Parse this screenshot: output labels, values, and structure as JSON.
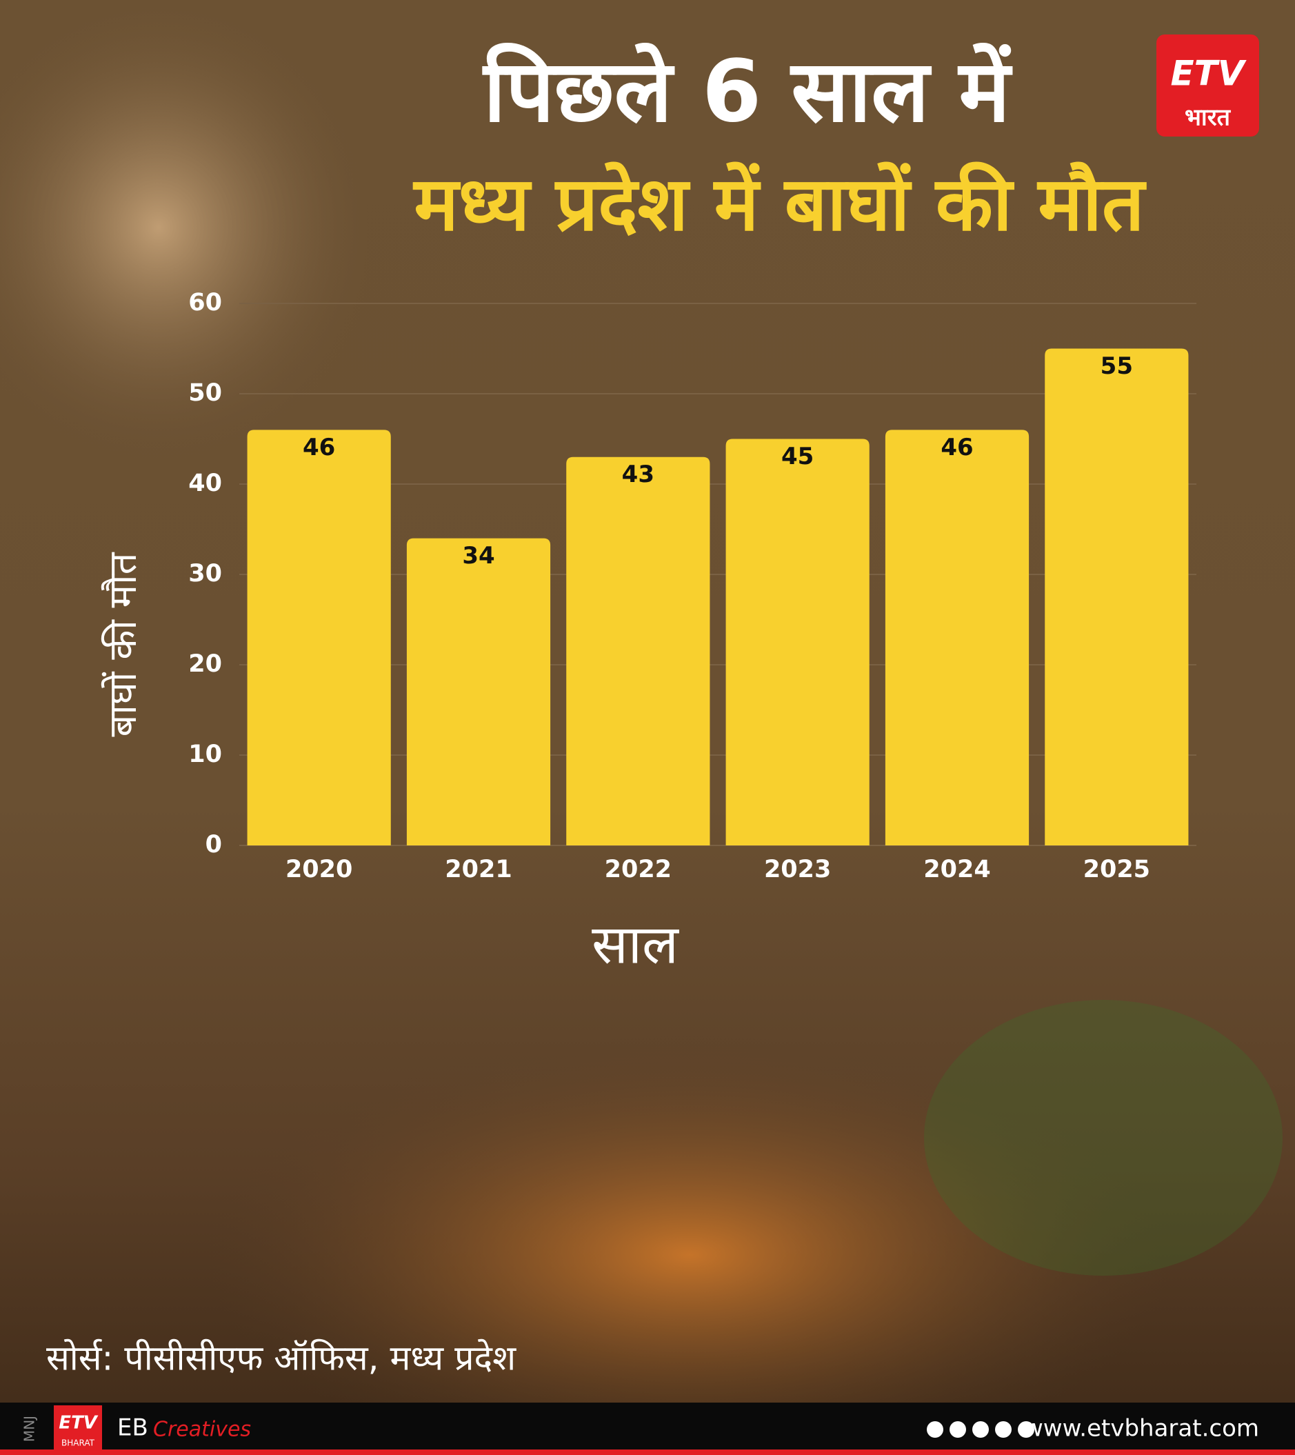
{
  "chart_data": {
    "type": "bar",
    "title": "पिछले 6 साल में",
    "subtitle": "मध्य प्रदेश में बाघों की मौत",
    "categories": [
      "2020",
      "2021",
      "2022",
      "2023",
      "2024",
      "2025"
    ],
    "values": [
      46,
      34,
      43,
      45,
      46,
      55
    ],
    "color": "#f8d02e",
    "ylim": [
      0,
      60
    ],
    "yticks": [
      0,
      10,
      20,
      30,
      40,
      50,
      60
    ],
    "grid": true,
    "x_label": "साल",
    "y_label": "बाघों की मौत",
    "source": "सोर्स:  पीसीसीएफ ऑफिस, मध्य प्रदेश"
  },
  "logo": {
    "name": "ETV",
    "subtitle": "भारत"
  },
  "footer": {
    "code": "MNJ",
    "logo_name": "ETV",
    "logo_subtitle": "BHARAT",
    "brand": "EB",
    "brand_script": "Creatives",
    "website": "www.etvbharat.com"
  }
}
